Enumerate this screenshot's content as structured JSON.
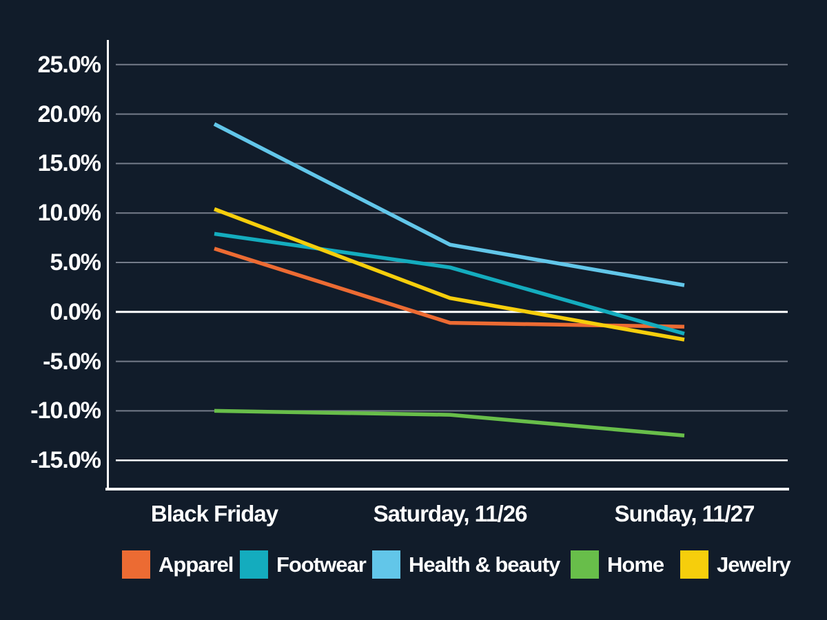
{
  "chart_data": {
    "type": "line",
    "title": "",
    "xlabel": "",
    "ylabel": "",
    "categories": [
      "Black Friday",
      "Saturday, 11/26",
      "Sunday, 11/27"
    ],
    "series": [
      {
        "name": "Apparel",
        "color": "#EC6B33",
        "values": [
          6.4,
          -1.1,
          -1.5
        ]
      },
      {
        "name": "Footwear",
        "color": "#14ACBE",
        "values": [
          7.9,
          4.5,
          -2.2
        ]
      },
      {
        "name": "Health & beauty",
        "color": "#62C6E9",
        "values": [
          19.0,
          6.8,
          2.7
        ]
      },
      {
        "name": "Home",
        "color": "#68BE4A",
        "values": [
          -10.0,
          -10.4,
          -12.5
        ]
      },
      {
        "name": "Jewelry",
        "color": "#F6CE0C",
        "values": [
          10.4,
          1.4,
          -2.8
        ]
      }
    ],
    "yticks": [
      25,
      20,
      15,
      10,
      5,
      0,
      -5,
      -10,
      -15
    ],
    "ytick_labels": [
      "25.0%",
      "20.0%",
      "15.0%",
      "10.0%",
      "5.0%",
      "0.0%",
      "-5.0%",
      "-10.0%",
      "-15.0%"
    ],
    "ylim": [
      -17.8,
      27.5
    ],
    "grid": true,
    "emphasized_gridlines": [
      0,
      -15
    ],
    "legend_position": "bottom"
  },
  "colors": {
    "background": "#111C2A",
    "grid": "#757C8A",
    "zero_line": "#FFFFFF",
    "axis": "#FFFFFF",
    "text": "#FFFFFF"
  }
}
